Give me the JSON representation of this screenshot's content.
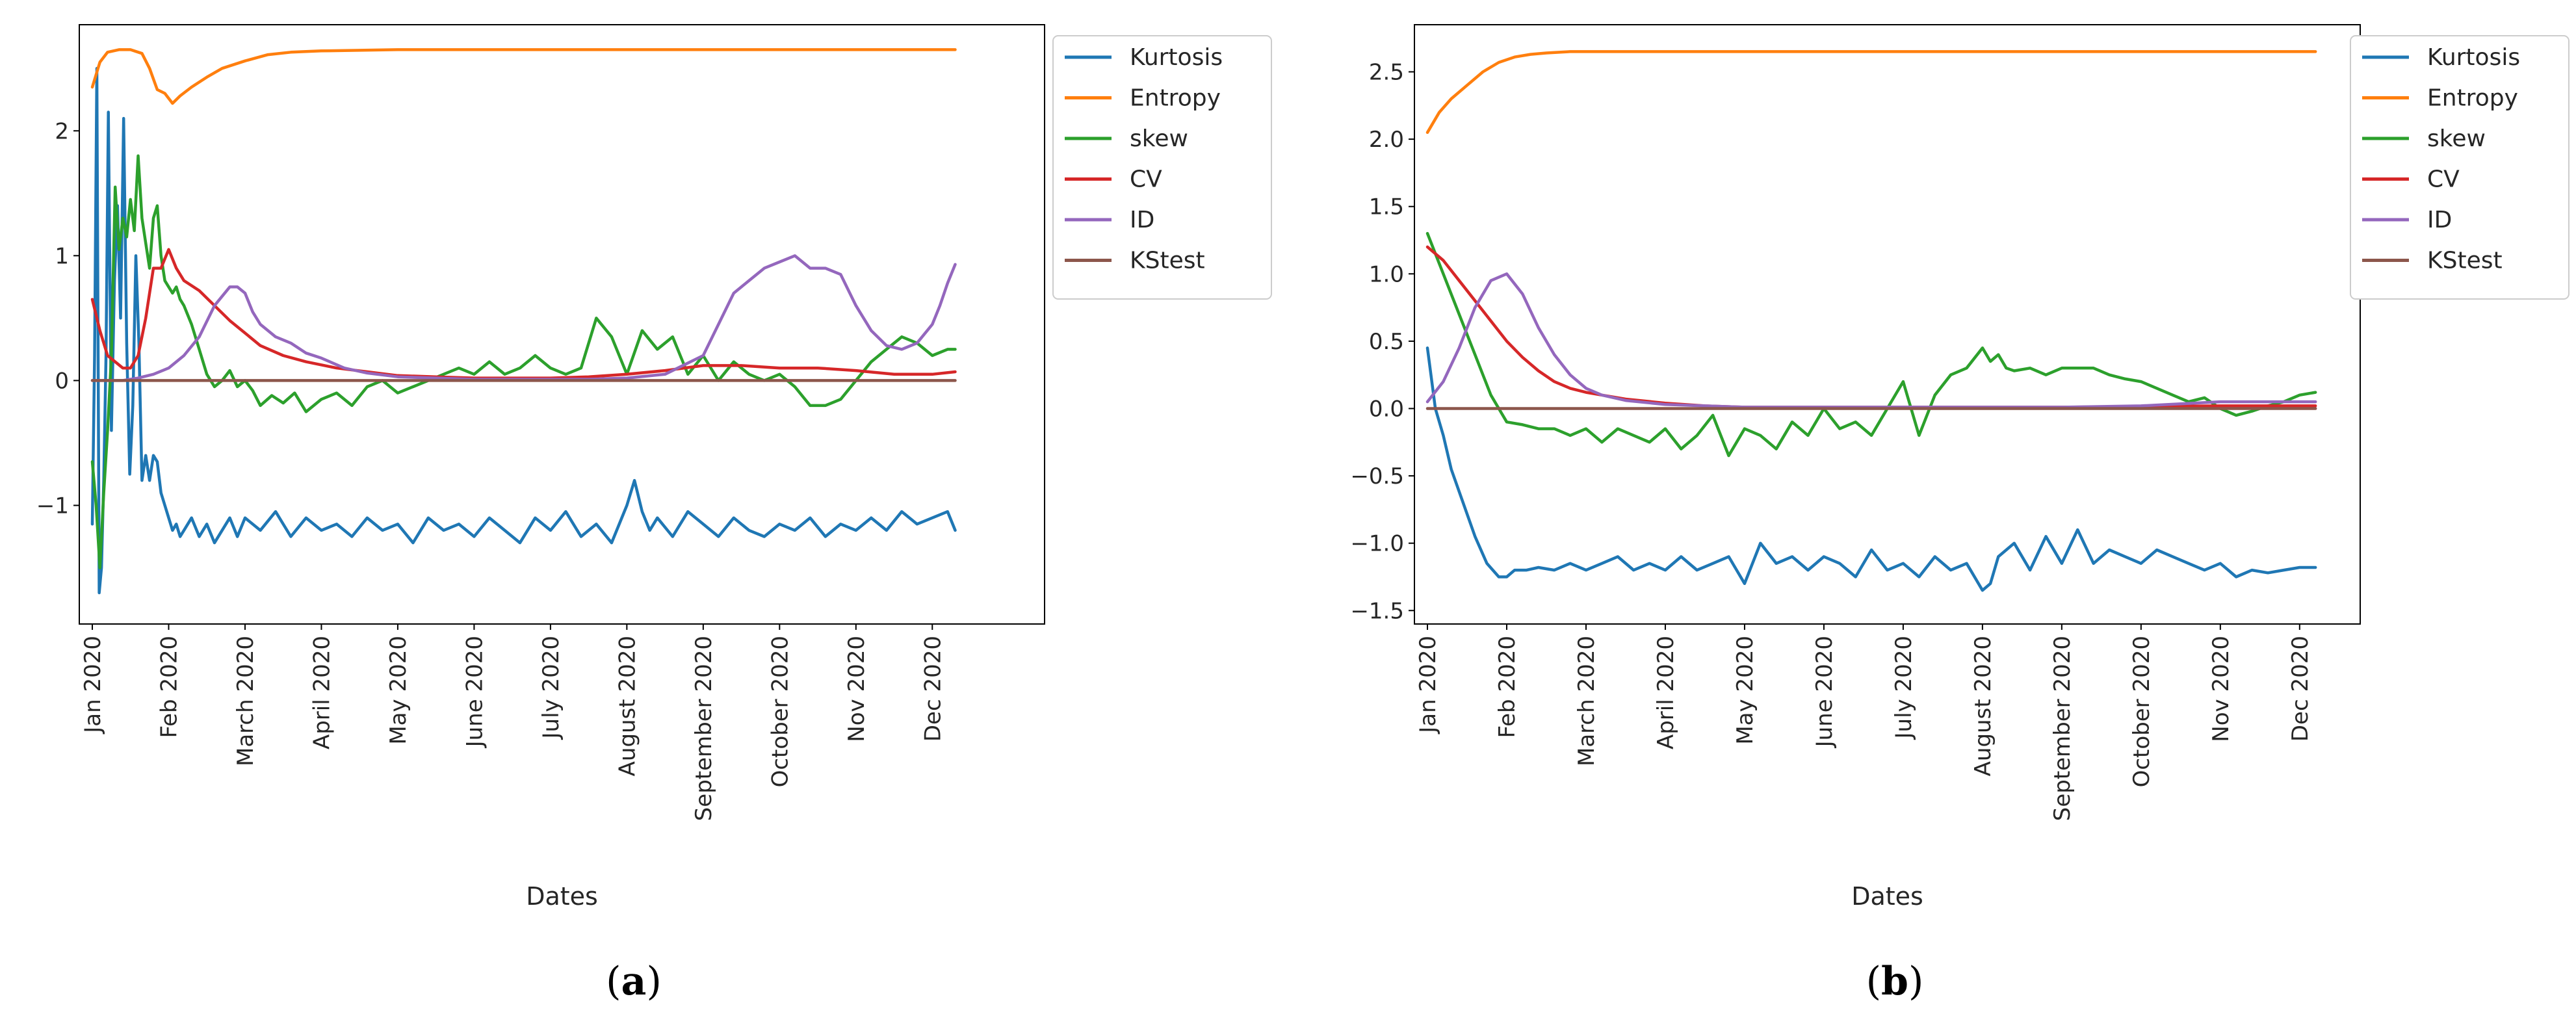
{
  "chart_data": [
    {
      "type": "line",
      "panel": "a",
      "caption": "a",
      "xlabel": "Dates",
      "ylabel": "",
      "x_range": [
        0,
        12.3
      ],
      "ylim": [
        -1.95,
        2.85
      ],
      "yticks": [
        -1,
        0,
        1,
        2
      ],
      "ytick_labels": [
        "−1",
        "0",
        "1",
        "2"
      ],
      "xticks": [
        0,
        1,
        2,
        3,
        4,
        5,
        6,
        7,
        8,
        9,
        10,
        11
      ],
      "xtick_labels": [
        "Jan 2020",
        "Feb 2020",
        "March 2020",
        "April 2020",
        "May 2020",
        "June 2020",
        "July 2020",
        "August 2020",
        "September 2020",
        "October 2020",
        "Nov 2020",
        "Dec 2020"
      ],
      "legend_position": "outside upper right",
      "series": [
        {
          "name": "Kurtosis",
          "color": "#1f77b4",
          "x": [
            0,
            0.03,
            0.06,
            0.09,
            0.12,
            0.15,
            0.18,
            0.21,
            0.25,
            0.29,
            0.33,
            0.37,
            0.41,
            0.45,
            0.49,
            0.53,
            0.57,
            0.61,
            0.65,
            0.7,
            0.75,
            0.8,
            0.85,
            0.9,
            0.95,
            1.0,
            1.05,
            1.1,
            1.15,
            1.2,
            1.3,
            1.4,
            1.5,
            1.6,
            1.7,
            1.8,
            1.9,
            2.0,
            2.2,
            2.4,
            2.6,
            2.8,
            3.0,
            3.2,
            3.4,
            3.6,
            3.8,
            4.0,
            4.2,
            4.4,
            4.6,
            4.8,
            5.0,
            5.2,
            5.4,
            5.6,
            5.8,
            6.0,
            6.2,
            6.4,
            6.6,
            6.8,
            7.0,
            7.1,
            7.2,
            7.3,
            7.4,
            7.6,
            7.8,
            8.0,
            8.2,
            8.4,
            8.6,
            8.8,
            9.0,
            9.2,
            9.4,
            9.6,
            9.8,
            10.0,
            10.2,
            10.4,
            10.6,
            10.8,
            11.0,
            11.2,
            11.3
          ],
          "y": [
            -1.15,
            0.2,
            2.5,
            -1.7,
            -1.5,
            -0.8,
            0.2,
            2.15,
            -0.4,
            0.8,
            1.4,
            0.5,
            2.1,
            0.3,
            -0.75,
            -0.2,
            1.0,
            0.3,
            -0.8,
            -0.6,
            -0.8,
            -0.6,
            -0.65,
            -0.9,
            -1.0,
            -1.1,
            -1.2,
            -1.15,
            -1.25,
            -1.2,
            -1.1,
            -1.25,
            -1.15,
            -1.3,
            -1.2,
            -1.1,
            -1.25,
            -1.1,
            -1.2,
            -1.05,
            -1.25,
            -1.1,
            -1.2,
            -1.15,
            -1.25,
            -1.1,
            -1.2,
            -1.15,
            -1.3,
            -1.1,
            -1.2,
            -1.15,
            -1.25,
            -1.1,
            -1.2,
            -1.3,
            -1.1,
            -1.2,
            -1.05,
            -1.25,
            -1.15,
            -1.3,
            -1.0,
            -0.8,
            -1.05,
            -1.2,
            -1.1,
            -1.25,
            -1.05,
            -1.15,
            -1.25,
            -1.1,
            -1.2,
            -1.25,
            -1.15,
            -1.2,
            -1.1,
            -1.25,
            -1.15,
            -1.2,
            -1.1,
            -1.2,
            -1.05,
            -1.15,
            -1.1,
            -1.05,
            -1.2
          ]
        },
        {
          "name": "Entropy",
          "color": "#ff7f0e",
          "x": [
            0,
            0.1,
            0.2,
            0.35,
            0.5,
            0.65,
            0.75,
            0.85,
            0.95,
            1.05,
            1.15,
            1.3,
            1.5,
            1.7,
            2.0,
            2.3,
            2.6,
            3.0,
            4.0,
            6.0,
            8.0,
            10.0,
            11.3
          ],
          "y": [
            2.35,
            2.55,
            2.63,
            2.65,
            2.65,
            2.62,
            2.5,
            2.33,
            2.3,
            2.22,
            2.28,
            2.35,
            2.43,
            2.5,
            2.56,
            2.61,
            2.63,
            2.64,
            2.65,
            2.65,
            2.65,
            2.65,
            2.65
          ]
        },
        {
          "name": "skew",
          "color": "#2ca02c",
          "x": [
            0,
            0.05,
            0.1,
            0.15,
            0.2,
            0.25,
            0.3,
            0.35,
            0.4,
            0.45,
            0.5,
            0.55,
            0.6,
            0.65,
            0.7,
            0.75,
            0.8,
            0.85,
            0.9,
            0.95,
            1.0,
            1.05,
            1.1,
            1.15,
            1.2,
            1.3,
            1.4,
            1.5,
            1.6,
            1.7,
            1.8,
            1.9,
            2.0,
            2.1,
            2.2,
            2.35,
            2.5,
            2.65,
            2.8,
            3.0,
            3.2,
            3.4,
            3.6,
            3.8,
            4.0,
            4.2,
            4.4,
            4.6,
            4.8,
            5.0,
            5.2,
            5.4,
            5.6,
            5.8,
            6.0,
            6.2,
            6.4,
            6.6,
            6.8,
            7.0,
            7.2,
            7.4,
            7.6,
            7.8,
            8.0,
            8.2,
            8.4,
            8.6,
            8.8,
            9.0,
            9.2,
            9.4,
            9.6,
            9.8,
            10.0,
            10.2,
            10.4,
            10.6,
            10.8,
            11.0,
            11.2,
            11.3
          ],
          "y": [
            -0.65,
            -1.0,
            -1.5,
            -0.9,
            -0.4,
            0.2,
            1.55,
            1.05,
            1.3,
            1.15,
            1.45,
            1.2,
            1.8,
            1.3,
            1.1,
            0.9,
            1.3,
            1.4,
            1.0,
            0.8,
            0.75,
            0.7,
            0.75,
            0.65,
            0.6,
            0.45,
            0.25,
            0.05,
            -0.05,
            0.0,
            0.08,
            -0.05,
            0.0,
            -0.08,
            -0.2,
            -0.12,
            -0.18,
            -0.1,
            -0.25,
            -0.15,
            -0.1,
            -0.2,
            -0.05,
            0.0,
            -0.1,
            -0.05,
            0.0,
            0.05,
            0.1,
            0.05,
            0.15,
            0.05,
            0.1,
            0.2,
            0.1,
            0.05,
            0.1,
            0.5,
            0.35,
            0.05,
            0.4,
            0.25,
            0.35,
            0.05,
            0.2,
            0.0,
            0.15,
            0.05,
            0.0,
            0.05,
            -0.05,
            -0.2,
            -0.2,
            -0.15,
            0.0,
            0.15,
            0.25,
            0.35,
            0.3,
            0.2,
            0.25,
            0.25
          ]
        },
        {
          "name": "CV",
          "color": "#d62728",
          "x": [
            0,
            0.1,
            0.2,
            0.3,
            0.4,
            0.5,
            0.6,
            0.7,
            0.8,
            0.9,
            1.0,
            1.1,
            1.2,
            1.4,
            1.6,
            1.8,
            2.0,
            2.2,
            2.5,
            2.8,
            3.2,
            3.6,
            4.0,
            4.5,
            5.0,
            5.5,
            6.0,
            6.5,
            7.0,
            7.5,
            8.0,
            8.5,
            9.0,
            9.5,
            10.0,
            10.5,
            11.0,
            11.3
          ],
          "y": [
            0.65,
            0.4,
            0.2,
            0.15,
            0.1,
            0.1,
            0.2,
            0.5,
            0.9,
            0.9,
            1.05,
            0.9,
            0.8,
            0.72,
            0.6,
            0.48,
            0.38,
            0.28,
            0.2,
            0.15,
            0.1,
            0.07,
            0.04,
            0.03,
            0.02,
            0.02,
            0.02,
            0.03,
            0.05,
            0.08,
            0.12,
            0.12,
            0.1,
            0.1,
            0.08,
            0.05,
            0.05,
            0.07
          ]
        },
        {
          "name": "ID",
          "color": "#9467bd",
          "x": [
            0,
            0.2,
            0.4,
            0.6,
            0.8,
            1.0,
            1.2,
            1.4,
            1.6,
            1.8,
            1.9,
            2.0,
            2.1,
            2.2,
            2.4,
            2.6,
            2.8,
            3.0,
            3.3,
            3.6,
            4.0,
            4.5,
            5.0,
            5.5,
            6.0,
            6.5,
            7.0,
            7.5,
            8.0,
            8.2,
            8.4,
            8.6,
            8.8,
            9.0,
            9.2,
            9.4,
            9.6,
            9.8,
            10.0,
            10.2,
            10.4,
            10.6,
            10.8,
            11.0,
            11.1,
            11.2,
            11.3
          ],
          "y": [
            0.0,
            0.0,
            0.0,
            0.02,
            0.05,
            0.1,
            0.2,
            0.35,
            0.6,
            0.75,
            0.75,
            0.7,
            0.55,
            0.45,
            0.35,
            0.3,
            0.22,
            0.18,
            0.1,
            0.06,
            0.03,
            0.02,
            0.01,
            0.01,
            0.01,
            0.01,
            0.02,
            0.05,
            0.2,
            0.45,
            0.7,
            0.8,
            0.9,
            0.95,
            1.0,
            0.9,
            0.9,
            0.85,
            0.6,
            0.4,
            0.28,
            0.25,
            0.3,
            0.45,
            0.6,
            0.78,
            0.93
          ]
        },
        {
          "name": "KStest",
          "color": "#8c564b",
          "x": [
            0,
            11.3
          ],
          "y": [
            0.0,
            0.0
          ]
        }
      ]
    },
    {
      "type": "line",
      "panel": "b",
      "caption": "b",
      "xlabel": "Dates",
      "ylabel": "",
      "x_range": [
        0,
        11.6
      ],
      "ylim": [
        -1.6,
        2.85
      ],
      "yticks": [
        -1.5,
        -1.0,
        -0.5,
        0.0,
        0.5,
        1.0,
        1.5,
        2.0,
        2.5
      ],
      "ytick_labels": [
        "−1.5",
        "−1.0",
        "−0.5",
        "0.0",
        "0.5",
        "1.0",
        "1.5",
        "2.0",
        "2.5"
      ],
      "xticks": [
        0,
        1,
        2,
        3,
        4,
        5,
        6,
        7,
        8,
        9,
        10,
        11
      ],
      "xtick_labels": [
        "Jan 2020",
        "Feb 2020",
        "March 2020",
        "April 2020",
        "May 2020",
        "June 2020",
        "July 2020",
        "August 2020",
        "September 2020",
        "October 2020",
        "Nov 2020",
        "Dec 2020"
      ],
      "legend_position": "outside upper right",
      "series": [
        {
          "name": "Kurtosis",
          "color": "#1f77b4",
          "x": [
            0,
            0.1,
            0.2,
            0.3,
            0.45,
            0.6,
            0.75,
            0.9,
            1.0,
            1.1,
            1.25,
            1.4,
            1.6,
            1.8,
            2.0,
            2.2,
            2.4,
            2.6,
            2.8,
            3.0,
            3.2,
            3.4,
            3.6,
            3.8,
            4.0,
            4.2,
            4.4,
            4.6,
            4.8,
            5.0,
            5.2,
            5.4,
            5.6,
            5.8,
            6.0,
            6.2,
            6.4,
            6.6,
            6.8,
            7.0,
            7.1,
            7.2,
            7.4,
            7.6,
            7.8,
            8.0,
            8.2,
            8.4,
            8.6,
            8.8,
            9.0,
            9.2,
            9.4,
            9.6,
            9.8,
            10.0,
            10.2,
            10.4,
            10.6,
            10.8,
            11.0,
            11.2
          ],
          "y": [
            0.45,
            0.0,
            -0.2,
            -0.45,
            -0.7,
            -0.95,
            -1.15,
            -1.25,
            -1.25,
            -1.2,
            -1.2,
            -1.18,
            -1.2,
            -1.15,
            -1.2,
            -1.15,
            -1.1,
            -1.2,
            -1.15,
            -1.2,
            -1.1,
            -1.2,
            -1.15,
            -1.1,
            -1.3,
            -1.0,
            -1.15,
            -1.1,
            -1.2,
            -1.1,
            -1.15,
            -1.25,
            -1.05,
            -1.2,
            -1.15,
            -1.25,
            -1.1,
            -1.2,
            -1.15,
            -1.35,
            -1.3,
            -1.1,
            -1.0,
            -1.2,
            -0.95,
            -1.15,
            -0.9,
            -1.15,
            -1.05,
            -1.1,
            -1.15,
            -1.05,
            -1.1,
            -1.15,
            -1.2,
            -1.15,
            -1.25,
            -1.2,
            -1.22,
            -1.2,
            -1.18,
            -1.18
          ]
        },
        {
          "name": "Entropy",
          "color": "#ff7f0e",
          "x": [
            0,
            0.15,
            0.3,
            0.5,
            0.7,
            0.9,
            1.1,
            1.3,
            1.5,
            1.8,
            2.2,
            3.0,
            5.0,
            8.0,
            11.2
          ],
          "y": [
            2.05,
            2.2,
            2.3,
            2.4,
            2.5,
            2.57,
            2.61,
            2.63,
            2.64,
            2.65,
            2.65,
            2.65,
            2.65,
            2.65,
            2.65
          ]
        },
        {
          "name": "skew",
          "color": "#2ca02c",
          "x": [
            0,
            0.2,
            0.4,
            0.6,
            0.8,
            1.0,
            1.2,
            1.4,
            1.6,
            1.8,
            2.0,
            2.2,
            2.4,
            2.6,
            2.8,
            3.0,
            3.2,
            3.4,
            3.6,
            3.8,
            4.0,
            4.2,
            4.4,
            4.6,
            4.8,
            5.0,
            5.2,
            5.4,
            5.6,
            5.8,
            6.0,
            6.2,
            6.4,
            6.6,
            6.8,
            7.0,
            7.1,
            7.2,
            7.3,
            7.4,
            7.6,
            7.8,
            8.0,
            8.2,
            8.4,
            8.6,
            8.8,
            9.0,
            9.2,
            9.4,
            9.6,
            9.8,
            10.0,
            10.2,
            10.4,
            10.6,
            10.8,
            11.0,
            11.2
          ],
          "y": [
            1.3,
            1.0,
            0.7,
            0.4,
            0.1,
            -0.1,
            -0.12,
            -0.15,
            -0.15,
            -0.2,
            -0.15,
            -0.25,
            -0.15,
            -0.2,
            -0.25,
            -0.15,
            -0.3,
            -0.2,
            -0.05,
            -0.35,
            -0.15,
            -0.2,
            -0.3,
            -0.1,
            -0.2,
            0.0,
            -0.15,
            -0.1,
            -0.2,
            0.0,
            0.2,
            -0.2,
            0.1,
            0.25,
            0.3,
            0.45,
            0.35,
            0.4,
            0.3,
            0.28,
            0.3,
            0.25,
            0.3,
            0.3,
            0.3,
            0.25,
            0.22,
            0.2,
            0.15,
            0.1,
            0.05,
            0.08,
            0.0,
            -0.05,
            -0.02,
            0.02,
            0.05,
            0.1,
            0.12
          ]
        },
        {
          "name": "CV",
          "color": "#d62728",
          "x": [
            0,
            0.2,
            0.4,
            0.6,
            0.8,
            1.0,
            1.2,
            1.4,
            1.6,
            1.8,
            2.0,
            2.2,
            2.5,
            3.0,
            3.5,
            4.0,
            5.0,
            6.0,
            8.0,
            10.0,
            11.2
          ],
          "y": [
            1.2,
            1.1,
            0.95,
            0.8,
            0.65,
            0.5,
            0.38,
            0.28,
            0.2,
            0.15,
            0.12,
            0.1,
            0.07,
            0.04,
            0.02,
            0.01,
            0.01,
            0.01,
            0.01,
            0.02,
            0.02
          ]
        },
        {
          "name": "ID",
          "color": "#9467bd",
          "x": [
            0,
            0.2,
            0.4,
            0.6,
            0.8,
            1.0,
            1.2,
            1.4,
            1.6,
            1.8,
            2.0,
            2.2,
            2.5,
            3.0,
            3.5,
            4.0,
            5.0,
            6.0,
            7.0,
            8.0,
            9.0,
            10.0,
            11.2
          ],
          "y": [
            0.05,
            0.2,
            0.45,
            0.75,
            0.95,
            1.0,
            0.85,
            0.6,
            0.4,
            0.25,
            0.15,
            0.1,
            0.06,
            0.03,
            0.02,
            0.01,
            0.01,
            0.01,
            0.01,
            0.01,
            0.02,
            0.05,
            0.05
          ]
        },
        {
          "name": "KStest",
          "color": "#8c564b",
          "x": [
            0,
            11.2
          ],
          "y": [
            0.0,
            0.0
          ]
        }
      ]
    }
  ]
}
